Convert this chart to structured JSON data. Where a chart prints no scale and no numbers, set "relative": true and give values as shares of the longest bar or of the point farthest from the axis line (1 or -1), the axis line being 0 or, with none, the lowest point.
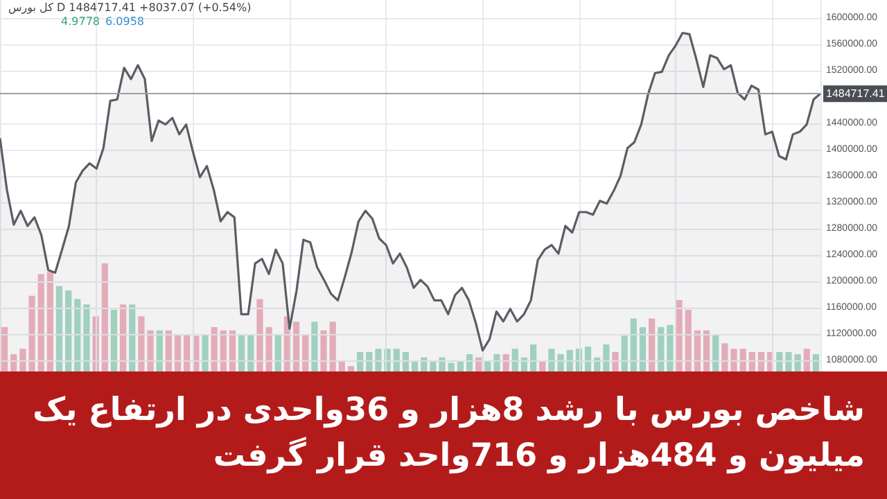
{
  "chart_data": [
    {
      "type": "area",
      "title": "شاخص بورس با رشد 8هزار و 36واحدی در ارتفاع یک میلیون و 484هزار و 716واحد قرار گرفت",
      "subtitle": "کل بورس D 1484717.41 +8037.07 (+0.54%)",
      "annotations": [
        "4.9778",
        "6.0958"
      ],
      "categories": [
        null,
        null,
        null,
        null,
        null,
        null,
        null,
        null,
        null,
        null,
        null,
        null,
        null,
        null,
        null,
        null,
        null,
        null,
        null,
        null,
        null,
        null,
        null,
        null,
        null,
        null,
        null,
        null,
        null,
        null,
        null,
        null,
        null,
        null,
        null,
        null,
        null,
        null,
        null,
        null,
        null,
        null,
        null,
        null,
        null,
        null,
        null,
        null,
        null,
        null,
        null,
        null,
        null,
        null,
        null,
        null,
        null,
        null,
        null,
        null,
        null,
        null,
        null,
        null,
        null,
        null,
        null,
        null,
        null,
        null,
        null,
        null,
        null,
        null,
        null,
        null,
        null,
        null,
        null,
        null,
        null,
        null,
        null,
        null,
        null,
        null,
        null,
        null,
        null,
        null,
        null,
        null,
        null,
        null,
        null,
        null,
        null,
        null,
        null,
        null,
        null,
        null,
        null,
        null,
        null,
        null,
        null,
        null,
        null,
        null,
        null,
        null,
        null,
        null,
        null,
        null,
        null,
        null,
        null,
        null
      ],
      "series": [
        {
          "color": "#5a5e63",
          "values": [
            1417000,
            1339000,
            1286000,
            1307000,
            1284000,
            1297000,
            1270000,
            1217000,
            1213000,
            1248000,
            1284000,
            1350000,
            1368000,
            1379000,
            1371000,
            1402000,
            1474000,
            1476000,
            1524000,
            1507000,
            1528000,
            1507000,
            1413000,
            1444000,
            1438000,
            1448000,
            1423000,
            1438000,
            1396000,
            1358000,
            1375000,
            1339000,
            1291000,
            1305000,
            1297000,
            1150000,
            1150000,
            1227000,
            1234000,
            1211000,
            1248000,
            1227000,
            1128000,
            1185000,
            1263000,
            1259000,
            1221000,
            1202000,
            1181000,
            1171000,
            1206000,
            1244000,
            1291000,
            1307000,
            1295000,
            1265000,
            1255000,
            1227000,
            1242000,
            1221000,
            1190000,
            1202000,
            1192000,
            1171000,
            1171000,
            1150000,
            1179000,
            1190000,
            1171000,
            1137000,
            1095000,
            1112000,
            1154000,
            1139000,
            1158000,
            1139000,
            1150000,
            1171000,
            1232000,
            1248000,
            1255000,
            1242000,
            1284000,
            1274000,
            1305000,
            1305000,
            1301000,
            1322000,
            1318000,
            1337000,
            1360000,
            1402000,
            1411000,
            1438000,
            1484000,
            1516000,
            1518000,
            1543000,
            1558000,
            1577000,
            1575000,
            1537000,
            1495000,
            1543000,
            1539000,
            1522000,
            1528000,
            1486000,
            1476000,
            1497000,
            1491000,
            1423000,
            1427000,
            1390000,
            1385000,
            1423000,
            1427000,
            1438000,
            1476000,
            1485000
          ]
        }
      ],
      "ylim": [
        1063000,
        1627000
      ],
      "yticks": [
        {
          "value": 1080000,
          "label": "1080000.00"
        },
        {
          "value": 1120000,
          "label": "1120000.00"
        },
        {
          "value": 1160000,
          "label": "1160000.00"
        },
        {
          "value": 1200000,
          "label": "1200000.00"
        },
        {
          "value": 1240000,
          "label": "1240000.00"
        },
        {
          "value": 1280000,
          "label": "1280000.00"
        },
        {
          "value": 1320000,
          "label": "1320000.00"
        },
        {
          "value": 1360000,
          "label": "1360000.00"
        },
        {
          "value": 1400000,
          "label": "1400000.00"
        },
        {
          "value": 1440000,
          "label": "1440000.00"
        },
        {
          "value": 1520000,
          "label": "1520000.00"
        },
        {
          "value": 1560000,
          "label": "1560000.00"
        },
        {
          "value": 1600000,
          "label": "1600000.00"
        }
      ],
      "ref_lines": [
        {
          "axis": "y",
          "value": 1484717.41,
          "label": "1484717.41",
          "color": "#9aa0a6"
        }
      ],
      "grid": true,
      "tick_labels": "y"
    },
    {
      "type": "bar",
      "relative": true,
      "categories": [
        null,
        null,
        null,
        null,
        null,
        null,
        null,
        null,
        null,
        null,
        null,
        null,
        null,
        null,
        null,
        null,
        null,
        null,
        null,
        null,
        null,
        null,
        null,
        null,
        null,
        null,
        null,
        null,
        null,
        null,
        null,
        null,
        null,
        null,
        null,
        null,
        null,
        null,
        null,
        null,
        null,
        null,
        null,
        null,
        null,
        null,
        null,
        null,
        null,
        null,
        null,
        null,
        null,
        null,
        null,
        null,
        null,
        null,
        null,
        null,
        null,
        null,
        null,
        null,
        null,
        null,
        null,
        null,
        null,
        null,
        null,
        null,
        null,
        null,
        null,
        null,
        null,
        null,
        null,
        null,
        null,
        null,
        null,
        null,
        null,
        null,
        null,
        null,
        null,
        null
      ],
      "values": [
        0.41,
        0.16,
        0.21,
        0.7,
        0.9,
        0.92,
        0.79,
        0.75,
        0.67,
        0.62,
        0.51,
        1,
        0.57,
        0.62,
        0.62,
        0.51,
        0.38,
        0.38,
        0.38,
        0.34,
        0.34,
        0.33,
        0.34,
        0.41,
        0.38,
        0.38,
        0.34,
        0.34,
        0.67,
        0.41,
        0.34,
        0.51,
        0.46,
        0.34,
        0.46,
        0.38,
        0.46,
        0.1,
        0.05,
        0.18,
        0.18,
        0.21,
        0.21,
        0.21,
        0.18,
        0.1,
        0.13,
        0.1,
        0.13,
        0.08,
        0.1,
        0.16,
        0.13,
        0.1,
        0.16,
        0.16,
        0.21,
        0.13,
        0.25,
        0.1,
        0.21,
        0.16,
        0.2,
        0.21,
        0.23,
        0.13,
        0.25,
        0.18,
        0.33,
        0.49,
        0.41,
        0.49,
        0.41,
        0.43,
        0.66,
        0.57,
        0.38,
        0.38,
        0.34,
        0.26,
        0.21,
        0.21,
        0.18,
        0.18,
        0.18,
        0.18,
        0.18,
        0.16,
        0.21,
        0.16
      ],
      "colors": [
        "#f0b4bf",
        "#f0b4bf",
        "#f0b4bf",
        "#f0b4bf",
        "#f0b4bf",
        "#f0b4bf",
        "#a6dbc7",
        "#a6dbc7",
        "#a6dbc7",
        "#a6dbc7",
        "#f0b4bf",
        "#f0b4bf",
        "#a6dbc7",
        "#f0b4bf",
        "#a6dbc7",
        "#f0b4bf",
        "#f0b4bf",
        "#a6dbc7",
        "#f0b4bf",
        "#f0b4bf",
        "#f0b4bf",
        "#f0b4bf",
        "#a6dbc7",
        "#f0b4bf",
        "#f0b4bf",
        "#f0b4bf",
        "#a6dbc7",
        "#a6dbc7",
        "#f0b4bf",
        "#f0b4bf",
        "#a6dbc7",
        "#f0b4bf",
        "#f0b4bf",
        "#f0b4bf",
        "#a6dbc7",
        "#f0b4bf",
        "#f0b4bf",
        "#f0b4bf",
        "#f0b4bf",
        "#a6dbc7",
        "#a6dbc7",
        "#a6dbc7",
        "#a6dbc7",
        "#a6dbc7",
        "#a6dbc7",
        "#a6dbc7",
        "#a6dbc7",
        "#a6dbc7",
        "#a6dbc7",
        "#a6dbc7",
        "#a6dbc7",
        "#a6dbc7",
        "#f0b4bf",
        "#a6dbc7",
        "#a6dbc7",
        "#f0b4bf",
        "#a6dbc7",
        "#a6dbc7",
        "#a6dbc7",
        "#f0b4bf",
        "#a6dbc7",
        "#a6dbc7",
        "#a6dbc7",
        "#a6dbc7",
        "#a6dbc7",
        "#a6dbc7",
        "#a6dbc7",
        "#f0b4bf",
        "#a6dbc7",
        "#a6dbc7",
        "#a6dbc7",
        "#f0b4bf",
        "#a6dbc7",
        "#a6dbc7",
        "#f0b4bf",
        "#f0b4bf",
        "#f0b4bf",
        "#f0b4bf",
        "#a6dbc7",
        "#f0b4bf",
        "#f0b4bf",
        "#f0b4bf",
        "#f0b4bf",
        "#f0b4bf",
        "#f0b4bf",
        "#a6dbc7",
        "#a6dbc7",
        "#a6dbc7",
        "#f0b4bf",
        "#a6dbc7"
      ],
      "tick_labels": false
    }
  ]
}
